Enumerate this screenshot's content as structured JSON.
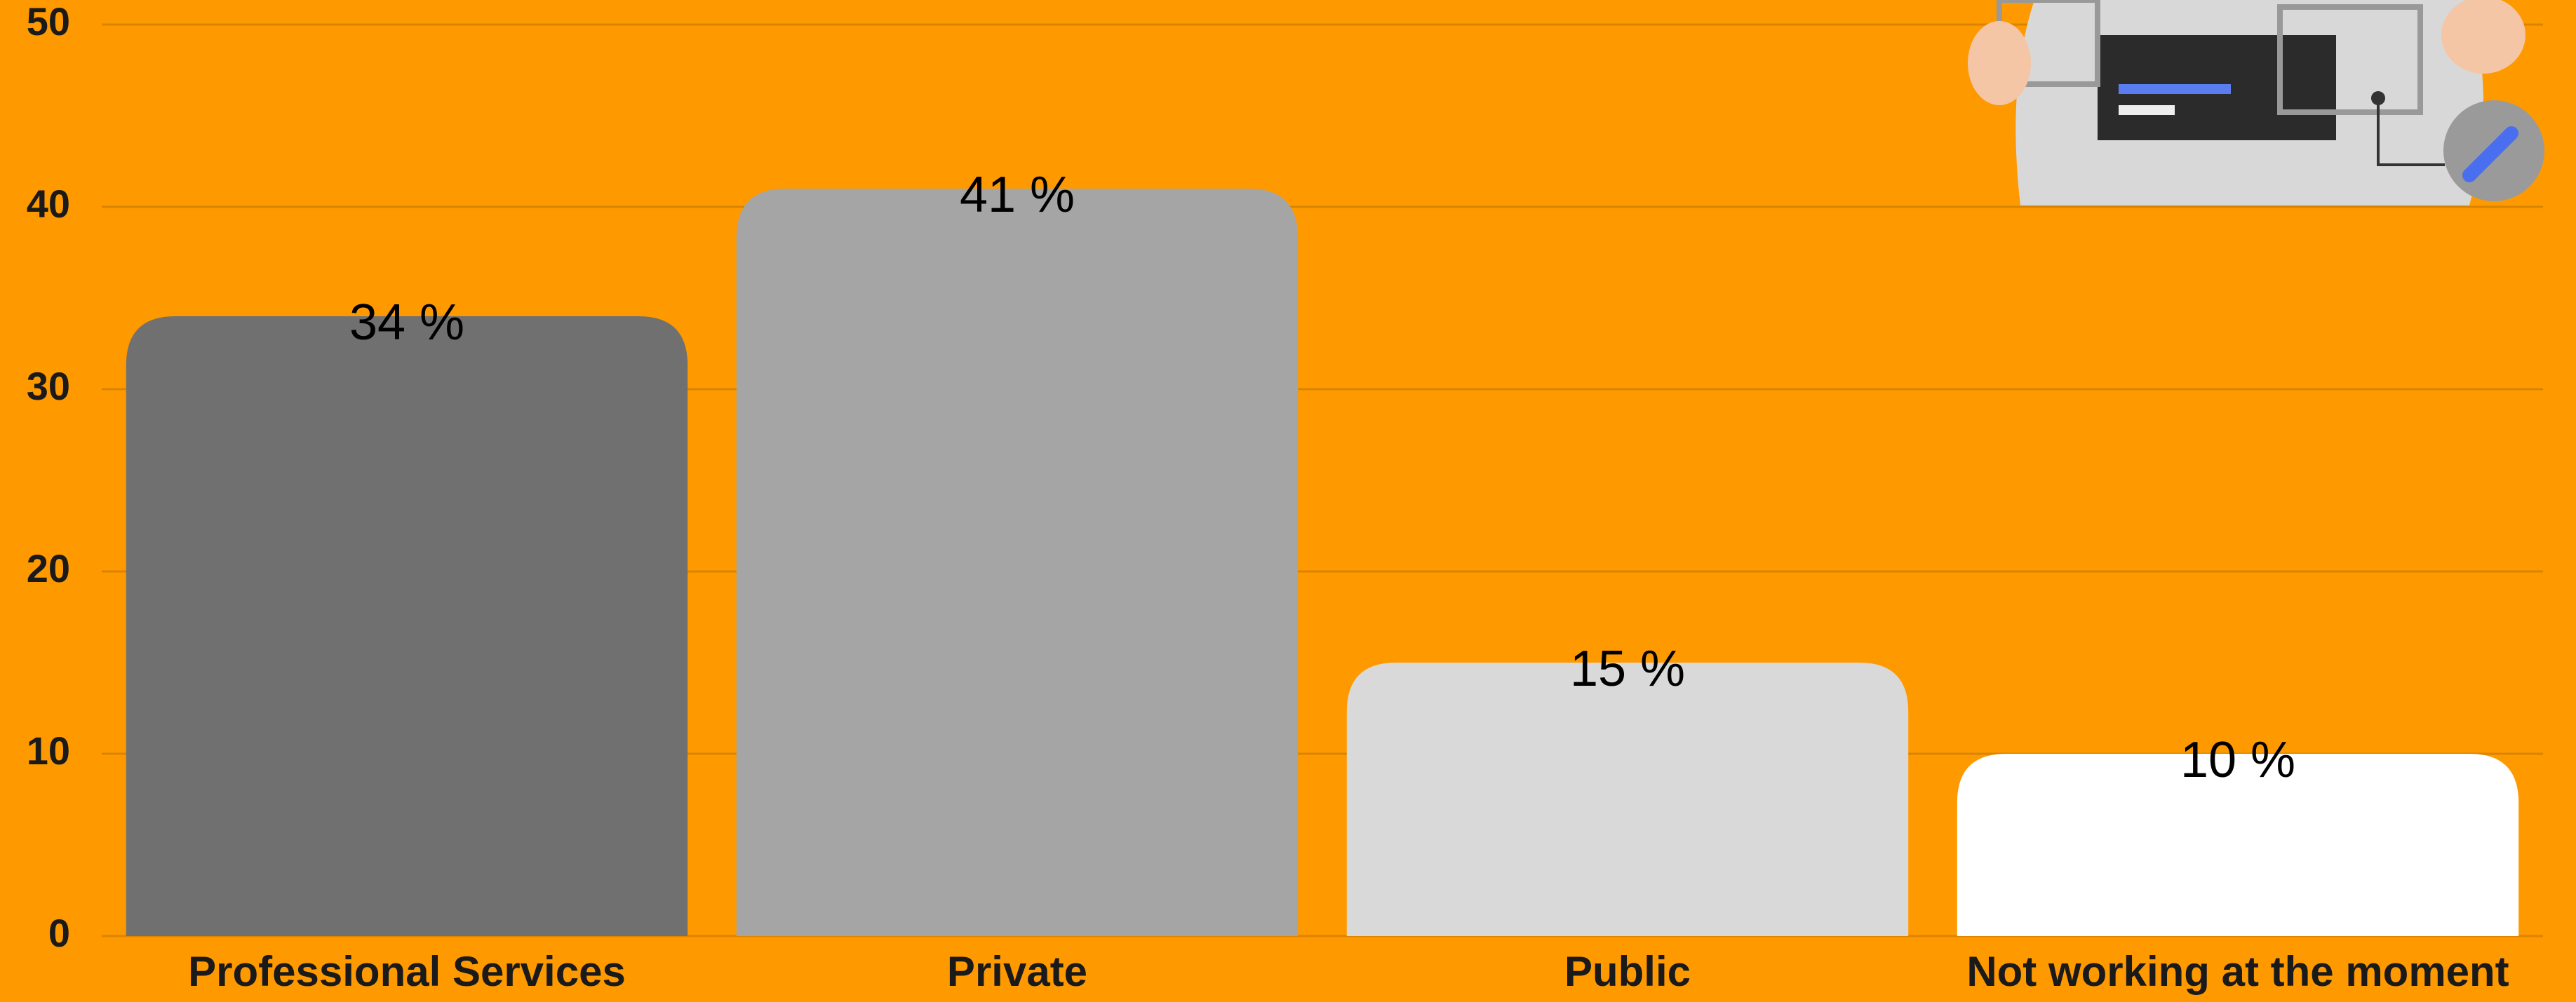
{
  "chart_data": {
    "type": "bar",
    "categories": [
      "Professional Services",
      "Private",
      "Public",
      "Not working at the moment"
    ],
    "values": [
      34,
      41,
      15,
      10
    ],
    "value_labels": [
      "34 %",
      "41 %",
      "15 %",
      "10 %"
    ],
    "colors": [
      "#707070",
      "#a5a5a5",
      "#d9d9d9",
      "#ffffff"
    ],
    "ylim": [
      0,
      50
    ],
    "yticks": [
      0,
      10,
      20,
      30,
      40,
      50
    ],
    "grid": true
  }
}
